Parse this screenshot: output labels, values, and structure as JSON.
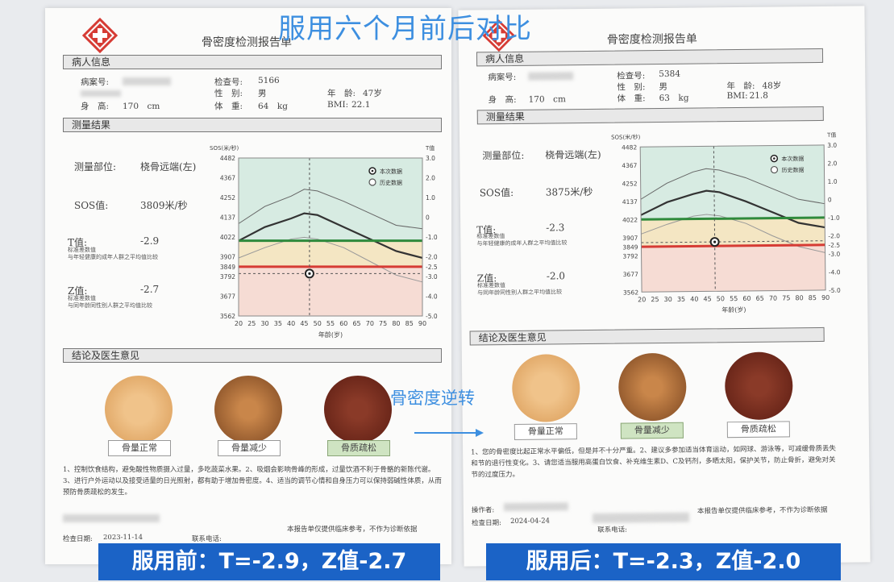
{
  "headline": "服用六个月前后对比",
  "reversal_label": "骨密度逆转",
  "banners": {
    "before": "服用前：T=-2.9，Z值-2.7",
    "after": "服用后：T=-2.3，Z值-2.0"
  },
  "colors": {
    "accent_blue": "#1b63c6",
    "headline_blue": "#3d8fe0",
    "green_line": "#2f8a3c",
    "red_line": "#d63b34"
  },
  "left": {
    "title": "骨密度检测报告单",
    "patient_section": "病人信息",
    "case_no_label": "病案号:",
    "exam_no_label": "检查号:",
    "exam_no": "5166",
    "sex_label": "性　别:",
    "sex": "男",
    "age_label": "年　龄:",
    "age": "47岁",
    "height_label": "身　高:",
    "height": "170　cm",
    "weight_label": "体　重:",
    "weight": "64　kg",
    "bmi_label": "BMI:",
    "bmi": "22.1",
    "result_section": "测量结果",
    "site_label": "测量部位:",
    "site": "桡骨远端(左)",
    "sos_label": "SOS值:",
    "sos": "3809米/秒",
    "t_label": "T值:",
    "t": "-2.9",
    "t_note": "标准差数值\n与年轻健康的成年人群之平均值比较",
    "z_label": "Z值:",
    "z": "-2.7",
    "z_note": "标准差数值\n与同年龄同性别人群之平均值比较",
    "conclusion_section": "结论及医生意见",
    "disc_labels": [
      "骨量正常",
      "骨量减少",
      "骨质疏松"
    ],
    "conclusion_text": "1、控制饮食结构，避免酸性物质摄入过量，多吃蔬菜水果。2、吸烟会影响骨峰的形成，过量饮酒不利于骨骼的新陈代谢。3、进行户外运动以及接受适量的日光照射，都有助于增加骨密度。4、适当的调节心情和自身压力可以保持弱碱性体质，从而预防骨质疏松的发生。",
    "exam_date_label": "检查日期:",
    "exam_date": "2023-11-14",
    "contact_label": "联系电话:",
    "disclaimer": "本报告单仅提供临床参考，不作为诊断依据"
  },
  "right": {
    "title": "骨密度检测报告单",
    "patient_section": "病人信息",
    "case_no_label": "病案号:",
    "exam_no_label": "检查号:",
    "exam_no": "5384",
    "sex_label": "性　别:",
    "sex": "男",
    "age_label": "年　龄:",
    "age": "48岁",
    "height_label": "身　高:",
    "height": "170　cm",
    "weight_label": "体　重:",
    "weight": "63　kg",
    "bmi_label": "BMI:",
    "bmi": "21.8",
    "result_section": "测量结果",
    "site_label": "测量部位:",
    "site": "桡骨远端(左)",
    "sos_label": "SOS值:",
    "sos": "3875米/秒",
    "t_label": "T值:",
    "t": "-2.3",
    "t_note": "标准差数值\n与年轻健康的成年人群之平均值比较",
    "z_label": "Z值:",
    "z": "-2.0",
    "z_note": "标准差数值\n与同年龄同性别人群之平均值比较",
    "conclusion_section": "结论及医生意见",
    "disc_labels": [
      "骨量正常",
      "骨量减少",
      "骨质疏松"
    ],
    "conclusion_text": "1、您的骨密度比起正常水平偏低，但是并不十分严重。2、建议多参加适当体育运动，如网球、游泳等，可减缓骨质丢失和节的退行性变化。3、请您适当服用高蛋白饮食、补充维生素D、C及钙剂，多晒太阳，保护关节，防止骨折，避免对关节的过度压力。",
    "operator_label": "操作者:",
    "exam_date_label": "检查日期:",
    "exam_date": "2024-04-24",
    "contact_label": "联系电话:",
    "disclaimer": "本报告单仅提供临床参考，不作为诊断依据"
  },
  "chart_data": [
    {
      "type": "line",
      "title": "",
      "ylabel": "SOS(米/秒)",
      "y2label": "T值",
      "xlabel": "年龄(岁)",
      "x_ticks": [
        20,
        25,
        30,
        35,
        40,
        45,
        50,
        55,
        60,
        65,
        70,
        75,
        80,
        85,
        90
      ],
      "y_ticks": [
        3562,
        3677,
        3792,
        3849,
        3907,
        4022,
        4137,
        4252,
        4367,
        4482
      ],
      "t_ticks": [
        "3.0",
        "2.0",
        "1.0",
        "0",
        "-1.0",
        "-2.0",
        "-2.5",
        "-3.0",
        "-4.0",
        "-5.0"
      ],
      "legend": [
        "本次数据",
        "历史数据"
      ],
      "legend_position": "top-right",
      "t_normal_line_sos": 4000,
      "t_osteo_line_sos": 3849,
      "current_point": {
        "age": 47,
        "sos": 3809
      },
      "series": [
        {
          "values_x": [
            20,
            30,
            40,
            45,
            50,
            60,
            70,
            80,
            90
          ],
          "values_y": [
            4100,
            4200,
            4260,
            4300,
            4290,
            4230,
            4160,
            4090,
            4070
          ]
        },
        {
          "values_x": [
            20,
            30,
            40,
            45,
            50,
            60,
            70,
            80,
            90
          ],
          "values_y": [
            4000,
            4080,
            4130,
            4160,
            4150,
            4080,
            4010,
            3940,
            3900
          ]
        },
        {
          "values_x": [
            20,
            30,
            40,
            45,
            50,
            60,
            70,
            80,
            90
          ],
          "values_y": [
            3900,
            3960,
            4010,
            4020,
            4010,
            3960,
            3880,
            3800,
            3760
          ]
        }
      ]
    },
    {
      "type": "line",
      "title": "",
      "ylabel": "SOS(米/秒)",
      "y2label": "T值",
      "xlabel": "年龄(岁)",
      "x_ticks": [
        20,
        25,
        30,
        35,
        40,
        45,
        50,
        55,
        60,
        65,
        70,
        75,
        80,
        85,
        90
      ],
      "y_ticks": [
        3562,
        3677,
        3792,
        3849,
        3907,
        4022,
        4137,
        4252,
        4367,
        4482
      ],
      "t_ticks": [
        "3.0",
        "2.0",
        "1.0",
        "0",
        "-1.0",
        "-2.0",
        "-2.5",
        "-3.0",
        "-4.0",
        "-5.0"
      ],
      "legend": [
        "本次数据",
        "历史数据"
      ],
      "legend_position": "top-right",
      "t_normal_line_sos": 4022,
      "t_osteo_line_sos": 3849,
      "current_point": {
        "age": 48,
        "sos": 3875
      },
      "series": [
        {
          "values_x": [
            20,
            30,
            40,
            45,
            50,
            60,
            70,
            80,
            90
          ],
          "values_y": [
            4150,
            4250,
            4320,
            4340,
            4330,
            4280,
            4210,
            4140,
            4110
          ]
        },
        {
          "values_x": [
            20,
            30,
            40,
            45,
            50,
            60,
            70,
            80,
            90
          ],
          "values_y": [
            4050,
            4130,
            4180,
            4200,
            4190,
            4130,
            4060,
            3990,
            3960
          ]
        },
        {
          "values_x": [
            20,
            30,
            40,
            45,
            50,
            60,
            70,
            80,
            90
          ],
          "values_y": [
            3930,
            3990,
            4040,
            4050,
            4040,
            3990,
            3910,
            3840,
            3800
          ]
        }
      ]
    }
  ]
}
